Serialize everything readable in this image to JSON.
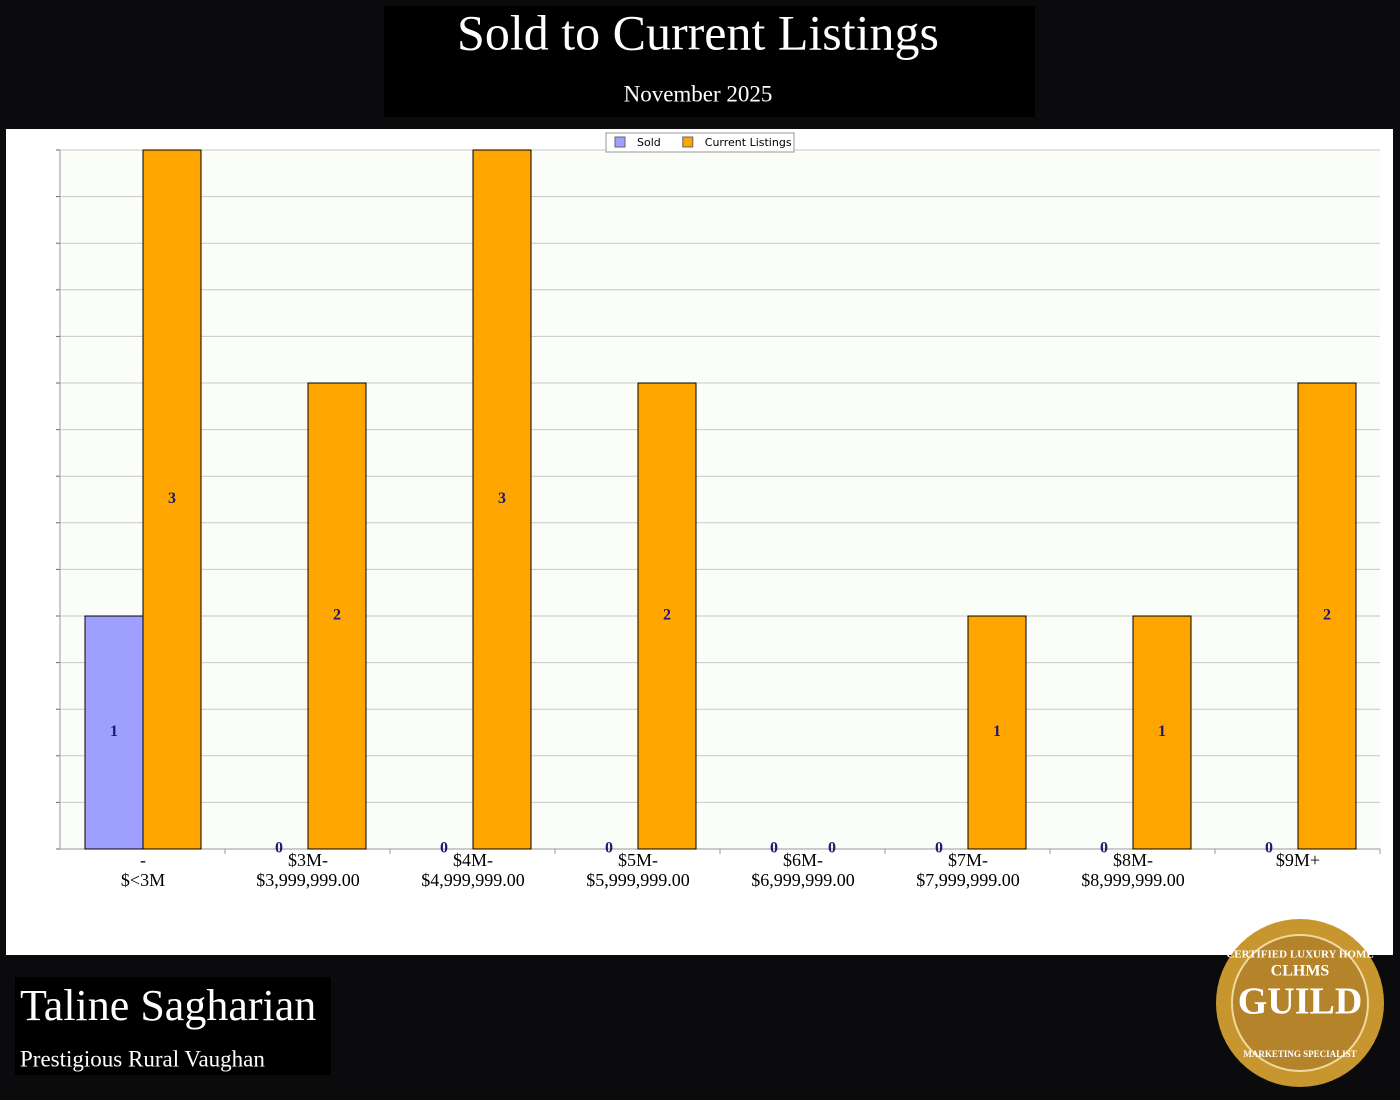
{
  "header": {
    "title": "Sold to Current Listings",
    "subtitle": "November 2025"
  },
  "chart_data": {
    "type": "bar",
    "categories": [
      [
        "-",
        "$<3M"
      ],
      [
        "$3M-",
        "$3,999,999.00"
      ],
      [
        "$4M-",
        "$4,999,999.00"
      ],
      [
        "$5M-",
        "$5,999,999.00"
      ],
      [
        "$6M-",
        "$6,999,999.00"
      ],
      [
        "$7M-",
        "$7,999,999.00"
      ],
      [
        "$8M-",
        "$8,999,999.00"
      ],
      [
        "$9M+"
      ]
    ],
    "series": [
      {
        "name": "Sold",
        "color": "#9f9fff",
        "values": [
          1,
          0,
          0,
          0,
          0,
          0,
          0,
          0
        ]
      },
      {
        "name": "Current Listings",
        "color": "#ffa500",
        "values": [
          3,
          2,
          3,
          2,
          0,
          1,
          1,
          2
        ]
      }
    ],
    "ylim": [
      0,
      3
    ],
    "yticks": [
      0,
      0.2,
      0.4,
      0.6,
      0.8,
      1,
      1.2,
      1.4,
      1.6,
      1.8,
      2,
      2.2,
      2.4,
      2.6,
      2.8,
      3
    ],
    "grid": true,
    "legend": "top"
  },
  "footer": {
    "agent": "Taline Sagharian",
    "area": "Prestigious Rural Vaughan"
  },
  "badge": {
    "top": "CERTIFIED LUXURY HOME",
    "mid": "CLHMS",
    "name": "GUILD",
    "bottom": "MARKETING SPECIALIST"
  }
}
